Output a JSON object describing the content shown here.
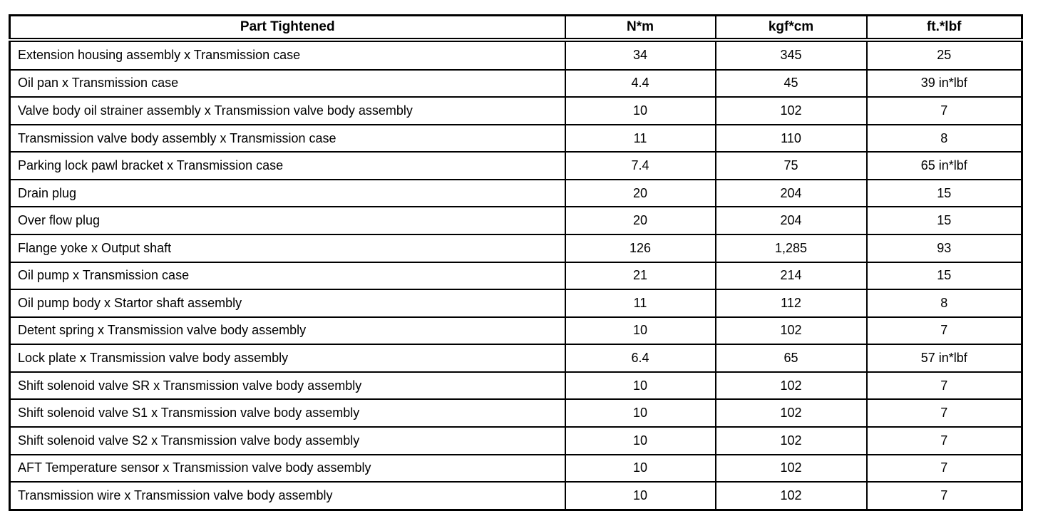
{
  "table": {
    "columns": [
      {
        "key": "part",
        "label": "Part Tightened"
      },
      {
        "key": "nm",
        "label": "N*m"
      },
      {
        "key": "kgfcm",
        "label": "kgf*cm"
      },
      {
        "key": "ftlbf",
        "label": "ft.*lbf"
      }
    ],
    "rows": [
      {
        "part": "Extension housing assembly x Transmission case",
        "nm": "34",
        "kgfcm": "345",
        "ftlbf": "25"
      },
      {
        "part": "Oil pan x Transmission case",
        "nm": "4.4",
        "kgfcm": "45",
        "ftlbf": "39 in*lbf"
      },
      {
        "part": "Valve body oil strainer assembly x Transmission valve body assembly",
        "nm": "10",
        "kgfcm": "102",
        "ftlbf": "7"
      },
      {
        "part": "Transmission valve body assembly x Transmission case",
        "nm": "11",
        "kgfcm": "110",
        "ftlbf": "8"
      },
      {
        "part": "Parking lock pawl bracket x Transmission case",
        "nm": "7.4",
        "kgfcm": "75",
        "ftlbf": "65 in*lbf"
      },
      {
        "part": "Drain plug",
        "nm": "20",
        "kgfcm": "204",
        "ftlbf": "15"
      },
      {
        "part": "Over flow plug",
        "nm": "20",
        "kgfcm": "204",
        "ftlbf": "15"
      },
      {
        "part": "Flange yoke x Output shaft",
        "nm": "126",
        "kgfcm": "1,285",
        "ftlbf": "93"
      },
      {
        "part": "Oil pump x Transmission case",
        "nm": "21",
        "kgfcm": "214",
        "ftlbf": "15"
      },
      {
        "part": "Oil pump body x Startor shaft assembly",
        "nm": "11",
        "kgfcm": "112",
        "ftlbf": "8"
      },
      {
        "part": "Detent spring x Transmission valve body assembly",
        "nm": "10",
        "kgfcm": "102",
        "ftlbf": "7"
      },
      {
        "part": "Lock plate x Transmission valve body assembly",
        "nm": "6.4",
        "kgfcm": "65",
        "ftlbf": "57 in*lbf"
      },
      {
        "part": "Shift solenoid valve SR x Transmission valve body assembly",
        "nm": "10",
        "kgfcm": "102",
        "ftlbf": "7"
      },
      {
        "part": "Shift solenoid valve S1 x Transmission valve body assembly",
        "nm": "10",
        "kgfcm": "102",
        "ftlbf": "7"
      },
      {
        "part": "Shift solenoid valve S2 x Transmission valve body assembly",
        "nm": "10",
        "kgfcm": "102",
        "ftlbf": "7"
      },
      {
        "part": "AFT Temperature sensor x Transmission valve body assembly",
        "nm": "10",
        "kgfcm": "102",
        "ftlbf": "7"
      },
      {
        "part": "Transmission wire x Transmission valve body assembly",
        "nm": "10",
        "kgfcm": "102",
        "ftlbf": "7"
      }
    ],
    "colors": {
      "border": "#000000",
      "text": "#000000",
      "background": "#ffffff"
    }
  }
}
